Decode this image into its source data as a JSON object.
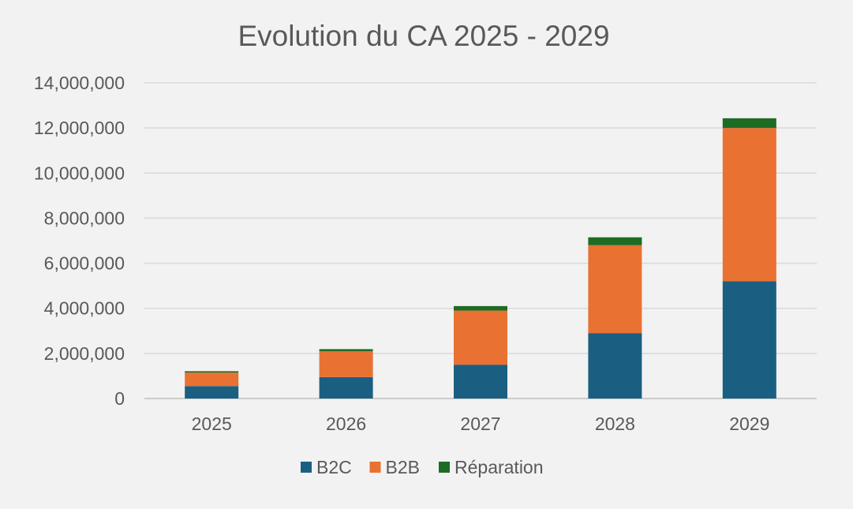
{
  "chart_data": {
    "type": "bar",
    "stacked": true,
    "title": "Evolution du CA 2025 - 2029",
    "xlabel": "",
    "ylabel": "",
    "categories": [
      "2025",
      "2026",
      "2027",
      "2028",
      "2029"
    ],
    "ylim": [
      0,
      14000000
    ],
    "yticks": [
      0,
      2000000,
      4000000,
      6000000,
      8000000,
      10000000,
      12000000,
      14000000
    ],
    "ytick_labels": [
      "0",
      "2,000,000",
      "4,000,000",
      "6,000,000",
      "8,000,000",
      "10,000,000",
      "12,000,000",
      "14,000,000"
    ],
    "grid": true,
    "legend_position": "bottom",
    "series": [
      {
        "name": "B2C",
        "color": "#1a5f82",
        "values": [
          550000,
          950000,
          1500000,
          2900000,
          5200000
        ]
      },
      {
        "name": "B2B",
        "color": "#e97132",
        "values": [
          600000,
          1150000,
          2400000,
          3900000,
          6800000
        ]
      },
      {
        "name": "Réparation",
        "color": "#1e6b24",
        "values": [
          60000,
          90000,
          200000,
          350000,
          430000
        ]
      }
    ]
  }
}
